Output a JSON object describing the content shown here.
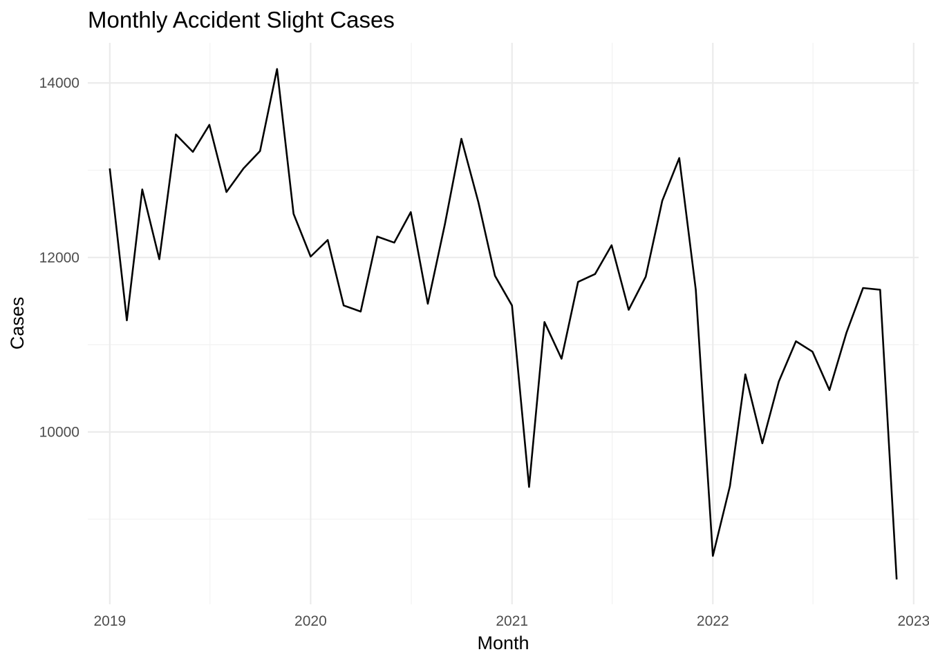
{
  "chart_data": {
    "type": "line",
    "title": "Monthly Accident Slight Cases",
    "xlabel": "Month",
    "ylabel": "Cases",
    "x_ticks": [
      "2019",
      "2020",
      "2021",
      "2022",
      "2023"
    ],
    "y_ticks": [
      10000,
      12000,
      14000
    ],
    "y_tick_labels": [
      "10000",
      "12000",
      "14000"
    ],
    "xlim": [
      "2018-11-22",
      "2023-01-10"
    ],
    "ylim": [
      8025,
      14460
    ],
    "grid": true,
    "legend": "none",
    "line_color": "#000000",
    "x": [
      "2019-01",
      "2019-02",
      "2019-03",
      "2019-04",
      "2019-05",
      "2019-06",
      "2019-07",
      "2019-08",
      "2019-09",
      "2019-10",
      "2019-11",
      "2019-12",
      "2020-01",
      "2020-02",
      "2020-03",
      "2020-04",
      "2020-05",
      "2020-06",
      "2020-07",
      "2020-08",
      "2020-09",
      "2020-10",
      "2020-11",
      "2020-12",
      "2021-01",
      "2021-02",
      "2021-03",
      "2021-04",
      "2021-05",
      "2021-06",
      "2021-07",
      "2021-08",
      "2021-09",
      "2021-10",
      "2021-11",
      "2021-12",
      "2022-01",
      "2022-02",
      "2022-03",
      "2022-04",
      "2022-05",
      "2022-06",
      "2022-07",
      "2022-08",
      "2022-09",
      "2022-10",
      "2022-11",
      "2022-12"
    ],
    "values": [
      13020,
      11280,
      12780,
      11980,
      13410,
      13210,
      13520,
      12750,
      13020,
      13220,
      14160,
      12500,
      12010,
      12200,
      11450,
      11380,
      12240,
      12170,
      12520,
      11470,
      12380,
      13360,
      12630,
      11790,
      11450,
      9370,
      11260,
      10840,
      11720,
      11810,
      12140,
      11400,
      11780,
      12650,
      13140,
      11630,
      8580,
      9380,
      10660,
      9870,
      10580,
      11040,
      10920,
      10480,
      11140,
      11650,
      11630,
      8310
    ]
  }
}
